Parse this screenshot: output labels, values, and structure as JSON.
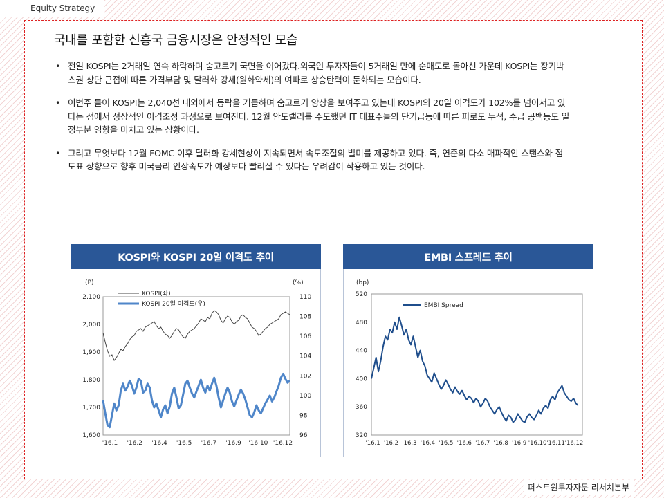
{
  "header": {
    "tag": "Equity Strategy"
  },
  "title": "국내를 포함한 신흥국 금융시장은 안정적인 모습",
  "bullets": [
    "전일 KOSPI는 2거래일 연속 하락하며 숨고르기 국면을 이어갔다.외국인 투자자들이 5거래일 만에 순매도로 돌아선 가운데 KOSPI는 장기박스권 상단 근접에 따른 가격부담 및 달러화 강세(원화약세)의 여파로 상승탄력이 둔화되는 모습이다.",
    "이번주 들어 KOSPI는 2,040선 내외에서 등락을 거듭하며 숨고르기 양상을 보여주고 있는데 KOSPI의 20일 이격도가 102%를 넘어서고 있다는 점에서 정상적인 이격조정 과정으로 보여진다. 12월 안도랠리를 주도했던 IT 대표주들의 단기급등에 따른 피로도 누적, 수급 공백등도 일정부분 영향을 미치고 있는 상황이다.",
    "그리고 무엇보다 12월 FOMC 이후 달러화 강세현상이 지속되면서 속도조절의 빌미를 제공하고 있다. 즉, 연준의 다소 매파적인 스탠스와 점도표 상향으로 향후 미국금리 인상속도가 예상보다 빨리질 수 있다는 우려감이 작용하고 있는 것이다."
  ],
  "footer": "퍼스트원투자자문 리서치본부",
  "colors": {
    "panel_border": "#dd2222",
    "chart_header": "#2a5797",
    "kospi_line": "#444444",
    "gap_line": "#4f86c9",
    "embi_line": "#1f4e8c"
  },
  "chart_data": [
    {
      "type": "line",
      "title": "KOSPI와 KOSPI 20일 이격도 추이",
      "y_left_unit": "(P)",
      "y_right_unit": "(%)",
      "ylim_left": [
        1600,
        2100
      ],
      "ylim_right": [
        96,
        110
      ],
      "yticks_left": [
        "1,600",
        "1,700",
        "1,800",
        "1,900",
        "2,000",
        "2,100"
      ],
      "yticks_right": [
        "96",
        "98",
        "100",
        "102",
        "104",
        "106",
        "108",
        "110"
      ],
      "x_ticks": [
        "'16.1",
        "'16.2",
        "'16.4",
        "'16.5",
        "'16.7",
        "'16.9",
        "'16.10",
        "'16.12"
      ],
      "legend_position": "top-left",
      "series": [
        {
          "name": "KOSPI(좌)",
          "axis": "left",
          "values": [
            1970,
            1935,
            1905,
            1885,
            1890,
            1870,
            1880,
            1895,
            1910,
            1905,
            1920,
            1930,
            1945,
            1955,
            1960,
            1975,
            1980,
            1985,
            1975,
            1990,
            1995,
            2000,
            2005,
            2010,
            1995,
            1985,
            1990,
            1975,
            1965,
            1960,
            1950,
            1960,
            1975,
            1985,
            1980,
            1965,
            1955,
            1950,
            1965,
            1975,
            1980,
            1985,
            1995,
            2005,
            2020,
            2015,
            2010,
            2025,
            2020,
            2040,
            2050,
            2045,
            2035,
            2015,
            2005,
            2020,
            2030,
            2025,
            2010,
            2000,
            2010,
            2015,
            2030,
            2035,
            2025,
            2020,
            2005,
            1990,
            1985,
            1975,
            1960,
            1965,
            1975,
            1985,
            1990,
            2000,
            2005,
            2010,
            2015,
            2020,
            2035,
            2040,
            2045,
            2040,
            2035
          ]
        },
        {
          "name": "KOSPI 20일 이격도(우)",
          "axis": "right",
          "values": [
            99.5,
            98.2,
            97.0,
            96.8,
            98.0,
            99.2,
            98.5,
            99.0,
            100.5,
            101.2,
            100.5,
            100.9,
            101.5,
            101.0,
            100.2,
            100.8,
            101.7,
            101.5,
            100.3,
            100.5,
            101.2,
            100.8,
            99.5,
            98.8,
            99.2,
            98.5,
            97.8,
            98.6,
            99.0,
            98.2,
            98.9,
            100.2,
            100.8,
            99.8,
            98.7,
            99.0,
            100.1,
            101.2,
            101.5,
            100.8,
            100.2,
            99.8,
            100.4,
            101.0,
            101.6,
            100.8,
            100.3,
            101.0,
            100.5,
            101.2,
            101.8,
            101.0,
            99.8,
            98.8,
            99.5,
            100.2,
            100.8,
            100.3,
            99.4,
            98.9,
            99.5,
            100.1,
            100.6,
            100.2,
            99.6,
            98.8,
            98.0,
            97.8,
            98.3,
            99.0,
            98.5,
            98.2,
            98.7,
            99.2,
            99.6,
            100.0,
            99.4,
            99.8,
            100.4,
            101.0,
            101.8,
            102.2,
            101.7,
            101.3,
            101.5
          ]
        }
      ]
    },
    {
      "type": "line",
      "title": "EMBI 스프레드 추이",
      "y_unit": "(bp)",
      "ylim": [
        320,
        520
      ],
      "yticks": [
        "320",
        "360",
        "400",
        "440",
        "480",
        "520"
      ],
      "x_ticks": [
        "'16.1",
        "'16.2",
        "'16.3",
        "'16.4",
        "'16.5",
        "'16.6",
        "'16.7",
        "'16.8",
        "'16.9",
        "'16.10",
        "'16.11",
        "'16.12"
      ],
      "legend_position": "top-left",
      "series": [
        {
          "name": "EMBI Spread",
          "values": [
            400,
            415,
            430,
            410,
            425,
            445,
            460,
            455,
            470,
            465,
            480,
            470,
            487,
            475,
            462,
            470,
            455,
            448,
            460,
            445,
            430,
            440,
            425,
            418,
            405,
            400,
            395,
            408,
            400,
            392,
            385,
            390,
            398,
            392,
            385,
            380,
            388,
            382,
            378,
            383,
            376,
            370,
            375,
            372,
            366,
            372,
            368,
            360,
            365,
            372,
            368,
            360,
            355,
            350,
            356,
            360,
            352,
            345,
            340,
            348,
            345,
            338,
            342,
            350,
            345,
            340,
            338,
            346,
            350,
            345,
            342,
            348,
            355,
            350,
            358,
            362,
            358,
            370,
            375,
            370,
            380,
            385,
            390,
            380,
            375,
            370,
            368,
            372,
            365,
            362
          ]
        }
      ]
    }
  ]
}
